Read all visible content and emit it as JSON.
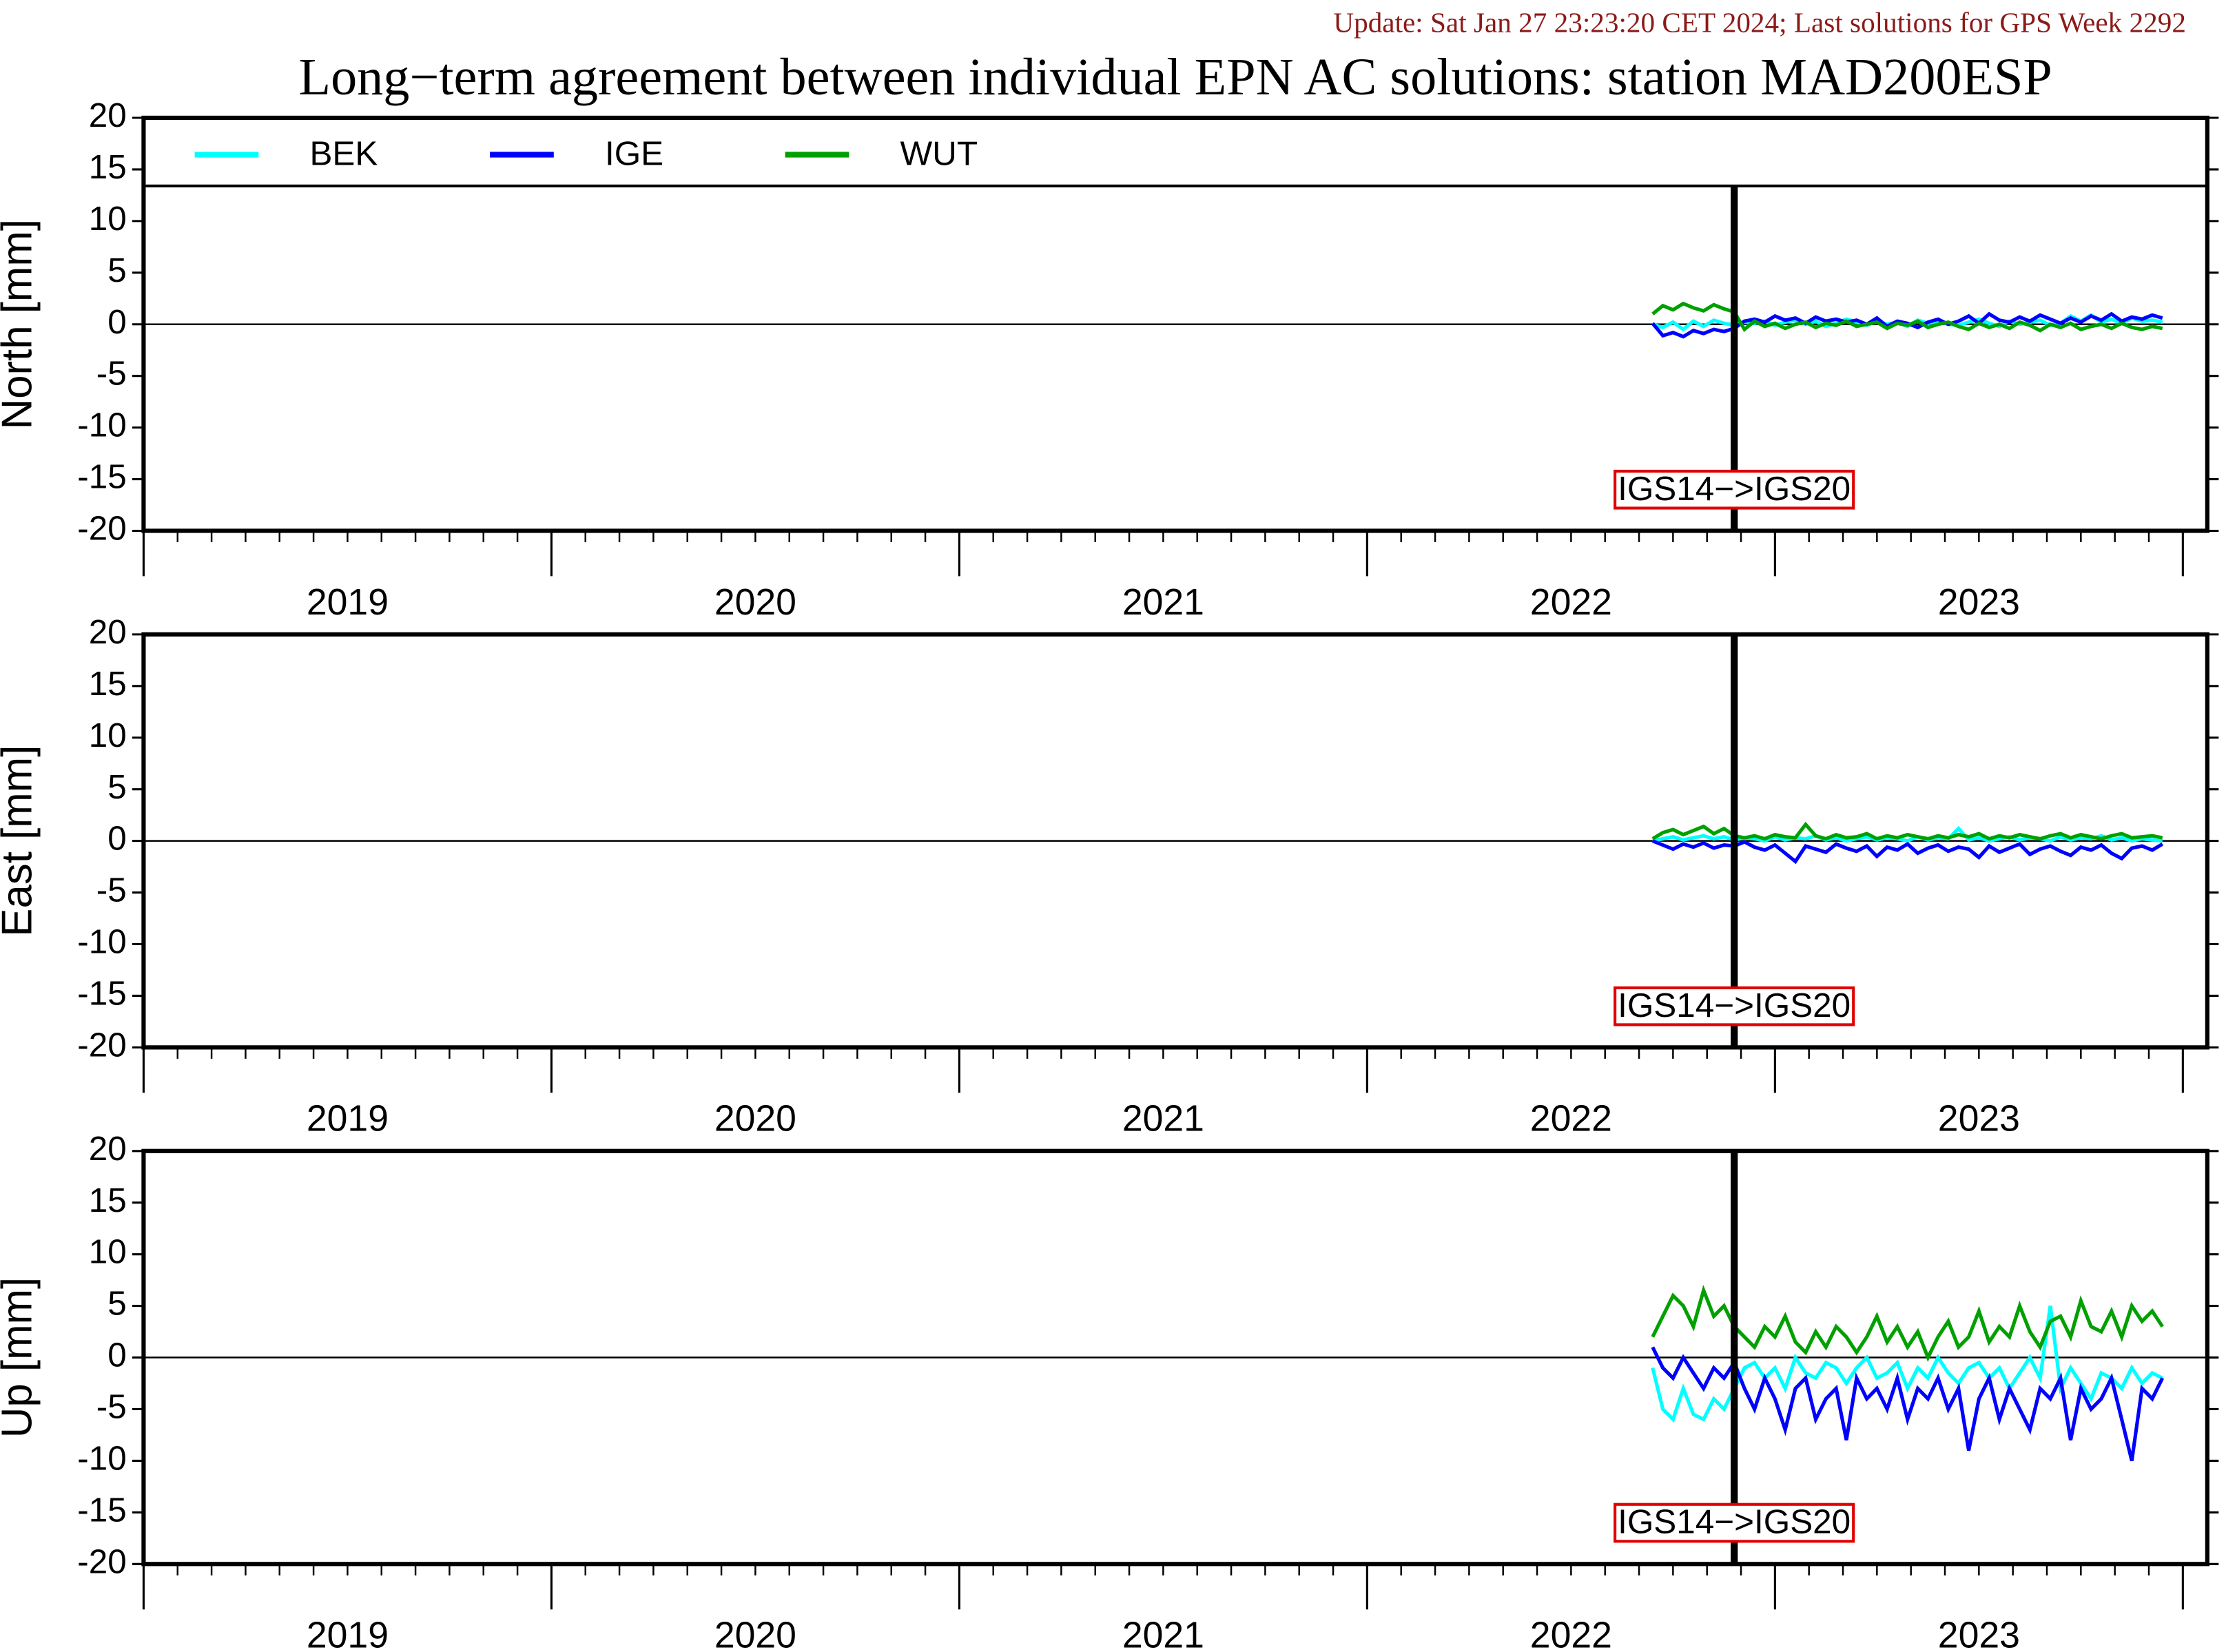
{
  "header": {
    "update": "Update: Sat Jan 27 23:23:20 CET 2024; Last solutions for GPS Week 2292",
    "title": "Long−term agreement between individual EPN AC solutions: station MAD200ESP"
  },
  "chart_data": [
    {
      "type": "line",
      "ylabel": "North [mm]",
      "legend": true,
      "annotation": "IGS14−>IGS20",
      "event_x": 2022.9,
      "xlim": [
        2019,
        2024.06
      ],
      "year_bounds": [
        2019,
        2020,
        2021,
        2022,
        2023,
        2024
      ],
      "xticks": [
        {
          "value": 2019.5,
          "label": "2019"
        },
        {
          "value": 2020.5,
          "label": "2020"
        },
        {
          "value": 2021.5,
          "label": "2021"
        },
        {
          "value": 2022.5,
          "label": "2022"
        },
        {
          "value": 2023.5,
          "label": "2023"
        }
      ],
      "ylim": [
        -20,
        20
      ],
      "yticks": [
        -20,
        -15,
        -10,
        -5,
        0,
        5,
        10,
        15,
        20
      ],
      "x": [
        2022.7,
        2022.725,
        2022.75,
        2022.775,
        2022.8,
        2022.825,
        2022.85,
        2022.875,
        2022.9,
        2022.925,
        2022.95,
        2022.975,
        2023,
        2023.025,
        2023.05,
        2023.075,
        2023.1,
        2023.125,
        2023.15,
        2023.175,
        2023.2,
        2023.225,
        2023.25,
        2023.275,
        2023.3,
        2023.325,
        2023.35,
        2023.375,
        2023.4,
        2023.425,
        2023.45,
        2023.475,
        2023.5,
        2023.525,
        2023.55,
        2023.575,
        2023.6,
        2023.625,
        2023.65,
        2023.675,
        2023.7,
        2023.725,
        2023.75,
        2023.775,
        2023.8,
        2023.825,
        2023.85,
        2023.875,
        2023.9,
        2023.925,
        2023.95
      ],
      "series": [
        {
          "name": "BEK",
          "color": "#00ffff",
          "values": [
            0,
            -0.3,
            0.2,
            -0.5,
            0.3,
            -0.2,
            0.4,
            0.1,
            -0.1,
            0.2,
            0.1,
            0.3,
            -0.1,
            0.2,
            0.4,
            0,
            0.3,
            -0.2,
            0.1,
            0.5,
            0.2,
            -0.1,
            0.3,
            0,
            0.2,
            -0.2,
            0.4,
            0.1,
            0.3,
            0,
            -0.1,
            0.2,
            0.5,
            0.1,
            -0.2,
            0.3,
            0,
            0.2,
            0.4,
            -0.1,
            0.1,
            0.8,
            0.3,
            0.9,
            0.2,
            0.5,
            0.1,
            0.6,
            0.3,
            0.4,
            0.2
          ]
        },
        {
          "name": "IGE",
          "color": "#0000ff",
          "values": [
            0.1,
            -1.1,
            -0.8,
            -1.2,
            -0.6,
            -0.9,
            -0.5,
            -0.7,
            -0.4,
            0.3,
            0.5,
            0.2,
            0.8,
            0.4,
            0.6,
            0.1,
            0.7,
            0.3,
            0.5,
            0.2,
            0.4,
            0,
            0.6,
            -0.2,
            0.3,
            0.1,
            -0.3,
            0.2,
            0.5,
            0,
            0.3,
            0.8,
            0.1,
            1,
            0.4,
            0.2,
            0.7,
            0.3,
            0.9,
            0.5,
            0.1,
            0.6,
            0.2,
            0.8,
            0.4,
            1,
            0.3,
            0.7,
            0.5,
            0.9,
            0.6
          ]
        },
        {
          "name": "WUT",
          "color": "#00a000",
          "values": [
            1,
            1.8,
            1.4,
            2,
            1.6,
            1.3,
            1.9,
            1.5,
            1.2,
            -0.5,
            0.3,
            -0.2,
            0.1,
            -0.4,
            0,
            0.2,
            -0.3,
            0.1,
            -0.1,
            0.3,
            -0.2,
            0,
            0.2,
            -0.4,
            0.1,
            -0.1,
            0.3,
            -0.3,
            0,
            0.2,
            -0.2,
            -0.5,
            0.1,
            -0.3,
            0,
            -0.4,
            0.2,
            -0.1,
            -0.6,
            0,
            -0.3,
            0.1,
            -0.5,
            -0.2,
            0,
            -0.4,
            0.1,
            -0.3,
            -0.5,
            -0.2,
            -0.4
          ]
        }
      ]
    },
    {
      "type": "line",
      "ylabel": "East [mm]",
      "legend": false,
      "annotation": "IGS14−>IGS20",
      "event_x": 2022.9,
      "xlim": [
        2019,
        2024.06
      ],
      "year_bounds": [
        2019,
        2020,
        2021,
        2022,
        2023,
        2024
      ],
      "xticks": [
        {
          "value": 2019.5,
          "label": "2019"
        },
        {
          "value": 2020.5,
          "label": "2020"
        },
        {
          "value": 2021.5,
          "label": "2021"
        },
        {
          "value": 2022.5,
          "label": "2022"
        },
        {
          "value": 2023.5,
          "label": "2023"
        }
      ],
      "ylim": [
        -20,
        20
      ],
      "yticks": [
        -20,
        -15,
        -10,
        -5,
        0,
        5,
        10,
        15,
        20
      ],
      "x": [
        2022.7,
        2022.725,
        2022.75,
        2022.775,
        2022.8,
        2022.825,
        2022.85,
        2022.875,
        2022.9,
        2022.925,
        2022.95,
        2022.975,
        2023,
        2023.025,
        2023.05,
        2023.075,
        2023.1,
        2023.125,
        2023.15,
        2023.175,
        2023.2,
        2023.225,
        2023.25,
        2023.275,
        2023.3,
        2023.325,
        2023.35,
        2023.375,
        2023.4,
        2023.425,
        2023.45,
        2023.475,
        2023.5,
        2023.525,
        2023.55,
        2023.575,
        2023.6,
        2023.625,
        2023.65,
        2023.675,
        2023.7,
        2023.725,
        2023.75,
        2023.775,
        2023.8,
        2023.825,
        2023.85,
        2023.875,
        2023.9,
        2023.925,
        2023.95
      ],
      "series": [
        {
          "name": "BEK",
          "color": "#00ffff",
          "values": [
            0,
            0.2,
            0.4,
            0.1,
            0.3,
            0.5,
            0.2,
            0.4,
            0.1,
            0.3,
            0.2,
            0,
            0.4,
            0.1,
            0.3,
            0.2,
            0.5,
            0.1,
            0.3,
            0,
            0.2,
            0.4,
            0.1,
            0.3,
            0.2,
            0,
            0.4,
            0.1,
            0.3,
            0.2,
            1.2,
            0.1,
            0.3,
            0,
            0.2,
            0.4,
            0.1,
            0.3,
            0.2,
            0,
            0.4,
            0.1,
            0.3,
            0.2,
            0.5,
            0.1,
            0.3,
            0,
            0.2,
            0.1,
            0
          ]
        },
        {
          "name": "IGE",
          "color": "#0000ff",
          "values": [
            0,
            -0.4,
            -0.8,
            -0.3,
            -0.6,
            -0.2,
            -0.7,
            -0.4,
            -0.5,
            -0.1,
            -0.6,
            -0.9,
            -0.4,
            -1.2,
            -2,
            -0.5,
            -0.8,
            -1.1,
            -0.3,
            -0.7,
            -1,
            -0.5,
            -1.5,
            -0.6,
            -0.9,
            -0.3,
            -1.2,
            -0.7,
            -0.4,
            -1,
            -0.6,
            -0.8,
            -1.6,
            -0.5,
            -1.1,
            -0.7,
            -0.3,
            -1.3,
            -0.8,
            -0.5,
            -1,
            -1.4,
            -0.6,
            -0.9,
            -0.4,
            -1.2,
            -1.7,
            -0.7,
            -0.5,
            -0.9,
            -0.3
          ]
        },
        {
          "name": "WUT",
          "color": "#00a000",
          "values": [
            0.2,
            0.8,
            1.1,
            0.6,
            1,
            1.4,
            0.7,
            1.2,
            0.5,
            0.3,
            0.5,
            0.2,
            0.6,
            0.4,
            0.3,
            1.6,
            0.5,
            0.2,
            0.6,
            0.3,
            0.4,
            0.7,
            0.2,
            0.5,
            0.3,
            0.6,
            0.4,
            0.2,
            0.5,
            0.3,
            0.6,
            0.4,
            0.7,
            0.2,
            0.5,
            0.3,
            0.6,
            0.4,
            0.2,
            0.5,
            0.7,
            0.3,
            0.6,
            0.4,
            0.2,
            0.5,
            0.7,
            0.3,
            0.4,
            0.5,
            0.3
          ]
        }
      ]
    },
    {
      "type": "line",
      "ylabel": "Up [mm]",
      "legend": false,
      "annotation": "IGS14−>IGS20",
      "event_x": 2022.9,
      "xlim": [
        2019,
        2024.06
      ],
      "year_bounds": [
        2019,
        2020,
        2021,
        2022,
        2023,
        2024
      ],
      "xticks": [
        {
          "value": 2019.5,
          "label": "2019"
        },
        {
          "value": 2020.5,
          "label": "2020"
        },
        {
          "value": 2021.5,
          "label": "2021"
        },
        {
          "value": 2022.5,
          "label": "2022"
        },
        {
          "value": 2023.5,
          "label": "2023"
        }
      ],
      "ylim": [
        -20,
        20
      ],
      "yticks": [
        -20,
        -15,
        -10,
        -5,
        0,
        5,
        10,
        15,
        20
      ],
      "x": [
        2022.7,
        2022.725,
        2022.75,
        2022.775,
        2022.8,
        2022.825,
        2022.85,
        2022.875,
        2022.9,
        2022.925,
        2022.95,
        2022.975,
        2023,
        2023.025,
        2023.05,
        2023.075,
        2023.1,
        2023.125,
        2023.15,
        2023.175,
        2023.2,
        2023.225,
        2023.25,
        2023.275,
        2023.3,
        2023.325,
        2023.35,
        2023.375,
        2023.4,
        2023.425,
        2023.45,
        2023.475,
        2023.5,
        2023.525,
        2023.55,
        2023.575,
        2023.6,
        2023.625,
        2023.65,
        2023.675,
        2023.7,
        2023.725,
        2023.75,
        2023.775,
        2023.8,
        2023.825,
        2023.85,
        2023.875,
        2023.9,
        2023.925,
        2023.95
      ],
      "series": [
        {
          "name": "BEK",
          "color": "#00ffff",
          "values": [
            -1,
            -5,
            -6,
            -3,
            -5.5,
            -6,
            -4,
            -5,
            -3,
            -1,
            -0.5,
            -2,
            -1,
            -3,
            0,
            -1.5,
            -2,
            -0.5,
            -1,
            -2.5,
            -1,
            0,
            -2,
            -1.5,
            -0.5,
            -3,
            -1,
            -2,
            0,
            -1.5,
            -2.5,
            -1,
            -0.5,
            -2,
            -1,
            -3,
            -1.5,
            0,
            -2,
            5,
            -3,
            -1,
            -2.5,
            -4,
            -1.5,
            -2,
            -3,
            -1,
            -2.5,
            -1.5,
            -2
          ]
        },
        {
          "name": "IGE",
          "color": "#0000ff",
          "values": [
            1,
            -1,
            -2,
            0,
            -1.5,
            -3,
            -1,
            -2,
            -0.5,
            -3,
            -5,
            -2,
            -4,
            -7,
            -3,
            -2,
            -6,
            -4,
            -3,
            -8,
            -2,
            -4,
            -3,
            -5,
            -2,
            -6,
            -3,
            -4,
            -2,
            -5,
            -3,
            -9,
            -4,
            -2,
            -6,
            -3,
            -5,
            -7,
            -3,
            -4,
            -2,
            -8,
            -3,
            -5,
            -4,
            -2,
            -6,
            -10,
            -3,
            -4,
            -2
          ]
        },
        {
          "name": "WUT",
          "color": "#00a000",
          "values": [
            2,
            4,
            6,
            5,
            3,
            6.5,
            4,
            5,
            3,
            2,
            1,
            3,
            2,
            4,
            1.5,
            0.5,
            2.5,
            1,
            3,
            2,
            0.5,
            2,
            4,
            1.5,
            3,
            1,
            2.5,
            0,
            2,
            3.5,
            1,
            2,
            4.5,
            1.5,
            3,
            2,
            5,
            2.5,
            1,
            3.5,
            4,
            2,
            5.5,
            3,
            2.5,
            4.5,
            2,
            5,
            3.5,
            4.5,
            3
          ]
        }
      ]
    }
  ]
}
